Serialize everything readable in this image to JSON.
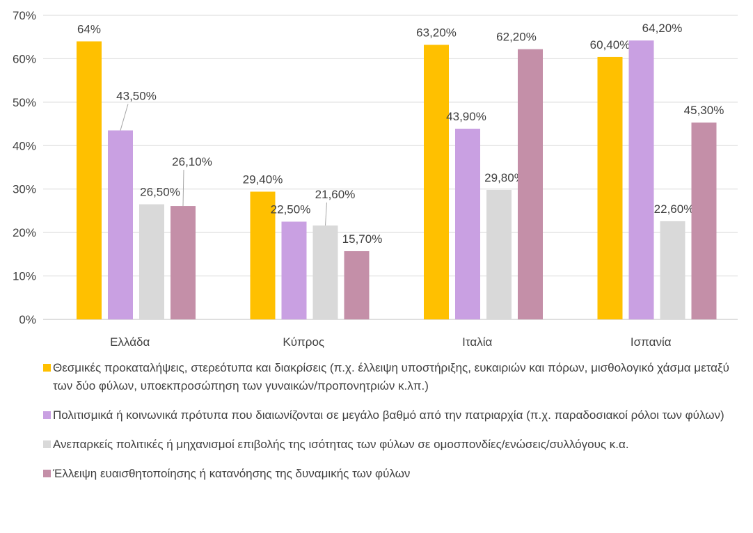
{
  "chart_data": {
    "type": "bar",
    "categories": [
      "Ελλάδα",
      "Κύπρος",
      "Ιταλία",
      "Ισπανία"
    ],
    "series": [
      {
        "name": "Θεσμικές προκαταλήψεις, στερεότυπα και διακρίσεις (π.χ. έλλειψη υποστήριξης, ευκαιριών και πόρων, μισθολογικό χάσμα μεταξύ των δύο φύλων, υποεκπροσώπηση των γυναικών/προπονητριών κ.λπ.)",
        "color": "#FFC000",
        "values": [
          64,
          29.4,
          63.2,
          60.4
        ],
        "labels": [
          "64%",
          "29,40%",
          "63,20%",
          "60,40%"
        ]
      },
      {
        "name": "Πολιτισμικά ή κοινωνικά πρότυπα που διαιωνίζονται σε μεγάλο βαθμό από την πατριαρχία (π.χ. παραδοσιακοί ρόλοι των φύλων)",
        "color": "#C9A0E2",
        "values": [
          43.5,
          22.5,
          43.9,
          64.2
        ],
        "labels": [
          "43,50%",
          "22,50%",
          "43,90%",
          "64,20%"
        ]
      },
      {
        "name": "Ανεπαρκείς πολιτικές ή μηχανισμοί επιβολής της ισότητας των φύλων σε ομοσπονδίες/ενώσεις/συλλόγους κ.α.",
        "color": "#D9D9D9",
        "values": [
          26.5,
          21.6,
          29.8,
          22.6
        ],
        "labels": [
          "26,50%",
          "21,60%",
          "29,80%",
          "22,60%"
        ]
      },
      {
        "name": "Έλλειψη ευαισθητοποίησης ή κατανόησης της δυναμικής των φύλων",
        "color": "#C48FA8",
        "values": [
          26.1,
          15.7,
          62.2,
          45.3
        ],
        "labels": [
          "26,10%",
          "15,70%",
          "62,20%",
          "45,30%"
        ]
      }
    ],
    "yticks": [
      "0%",
      "10%",
      "20%",
      "30%",
      "40%",
      "50%",
      "60%",
      "70%"
    ],
    "ylim": [
      0,
      70
    ],
    "grid": true,
    "legend_position": "bottom",
    "title": "",
    "xlabel": "",
    "ylabel": ""
  }
}
